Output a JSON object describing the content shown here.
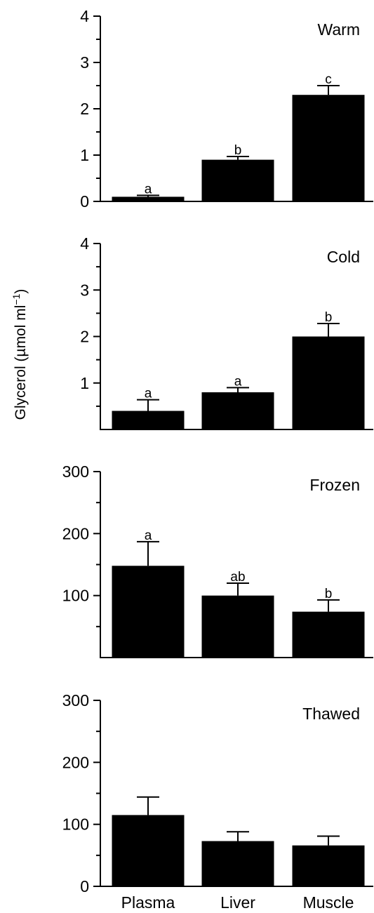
{
  "figure": {
    "shared_ylabel": "Glycerol (µmol ml",
    "shared_ylabel_sup": "−1",
    "shared_ylabel_close": ")",
    "categories": [
      "Plasma",
      "Liver",
      "Muscle"
    ]
  },
  "chart_data": [
    {
      "type": "bar",
      "title": "Warm",
      "categories": [
        "Plasma",
        "Liver",
        "Muscle"
      ],
      "values": [
        0.1,
        0.9,
        2.3
      ],
      "errors": [
        0.03,
        0.07,
        0.2
      ],
      "significance_letters": [
        "a",
        "b",
        "c"
      ],
      "ylim": [
        0,
        4
      ],
      "yticks": [
        0,
        1,
        2,
        3,
        4
      ],
      "yminor": [
        0.5,
        1.5,
        2.5,
        3.5
      ],
      "ylabel": "",
      "grid": false
    },
    {
      "type": "bar",
      "title": "Cold",
      "categories": [
        "Plasma",
        "Liver",
        "Muscle"
      ],
      "values": [
        0.4,
        0.8,
        2.0
      ],
      "errors": [
        0.24,
        0.1,
        0.28
      ],
      "significance_letters": [
        "a",
        "a",
        "b"
      ],
      "ylim": [
        0,
        4
      ],
      "yticks": [
        1,
        2,
        3,
        4
      ],
      "yminor": [
        0.5,
        1.5,
        2.5,
        3.5
      ],
      "ylabel": "",
      "grid": false
    },
    {
      "type": "bar",
      "title": "Frozen",
      "categories": [
        "Plasma",
        "Liver",
        "Muscle"
      ],
      "values": [
        148,
        100,
        74
      ],
      "errors": [
        39,
        20,
        19
      ],
      "significance_letters": [
        "a",
        "ab",
        "b"
      ],
      "ylim": [
        0,
        300
      ],
      "yticks": [
        100,
        200,
        300
      ],
      "yminor": [
        50,
        150,
        250
      ],
      "ylabel": "",
      "grid": false
    },
    {
      "type": "bar",
      "title": "Thawed",
      "categories": [
        "Plasma",
        "Liver",
        "Muscle"
      ],
      "values": [
        115,
        73,
        66
      ],
      "errors": [
        29,
        15,
        15
      ],
      "significance_letters": [
        "",
        "",
        ""
      ],
      "ylim": [
        0,
        300
      ],
      "yticks": [
        0,
        100,
        200,
        300
      ],
      "yminor": [
        50,
        150,
        250
      ],
      "ylabel": "",
      "grid": false
    }
  ]
}
